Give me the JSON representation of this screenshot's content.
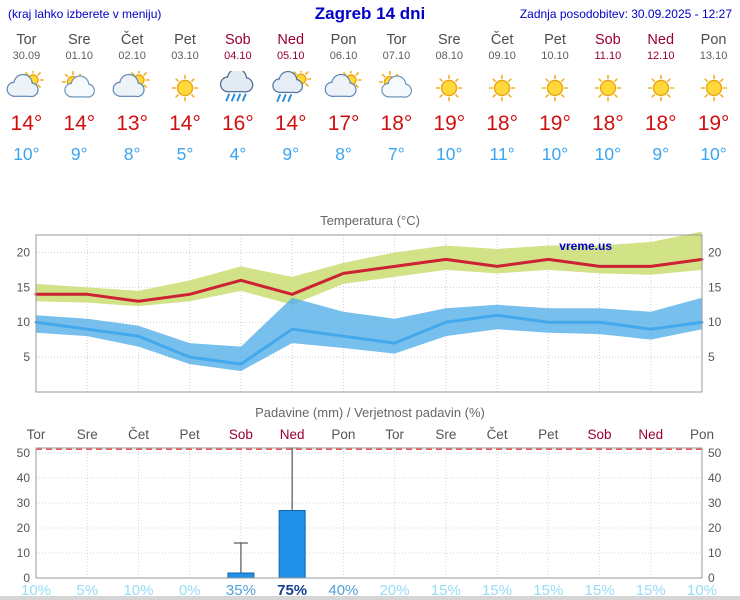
{
  "header": {
    "note": "(kraj lahko izberete v meniju)",
    "title": "Zagreb 14 dni",
    "updated": "Zadnja posodobitev: 30.09.2025 - 12:27"
  },
  "forecast": {
    "days": [
      {
        "name": "Tor",
        "date": "30.09",
        "icon": "mostly-cloudy-icon",
        "high": "14°",
        "low": "10°",
        "weekend": false
      },
      {
        "name": "Sre",
        "date": "01.10",
        "icon": "partly-cloudy-icon",
        "high": "14°",
        "low": "9°",
        "weekend": false
      },
      {
        "name": "Čet",
        "date": "02.10",
        "icon": "mostly-cloudy-icon",
        "high": "13°",
        "low": "8°",
        "weekend": false
      },
      {
        "name": "Pet",
        "date": "03.10",
        "icon": "sunny-icon",
        "high": "14°",
        "low": "5°",
        "weekend": false
      },
      {
        "name": "Sob",
        "date": "04.10",
        "icon": "rain-icon",
        "high": "16°",
        "low": "4°",
        "weekend": true
      },
      {
        "name": "Ned",
        "date": "05.10",
        "icon": "rain-sun-icon",
        "high": "14°",
        "low": "9°",
        "weekend": true
      },
      {
        "name": "Pon",
        "date": "06.10",
        "icon": "mostly-cloudy-icon",
        "high": "17°",
        "low": "8°",
        "weekend": false
      },
      {
        "name": "Tor",
        "date": "07.10",
        "icon": "partly-cloudy-icon",
        "high": "18°",
        "low": "7°",
        "weekend": false
      },
      {
        "name": "Sre",
        "date": "08.10",
        "icon": "sunny-icon",
        "high": "19°",
        "low": "10°",
        "weekend": false
      },
      {
        "name": "Čet",
        "date": "09.10",
        "icon": "sunny-icon",
        "high": "18°",
        "low": "11°",
        "weekend": false
      },
      {
        "name": "Pet",
        "date": "10.10",
        "icon": "sunny-icon",
        "high": "19°",
        "low": "10°",
        "weekend": false
      },
      {
        "name": "Sob",
        "date": "11.10",
        "icon": "sunny-icon",
        "high": "18°",
        "low": "10°",
        "weekend": true
      },
      {
        "name": "Ned",
        "date": "12.10",
        "icon": "sunny-icon",
        "high": "18°",
        "low": "9°",
        "weekend": true
      },
      {
        "name": "Pon",
        "date": "13.10",
        "icon": "sunny-icon",
        "high": "19°",
        "low": "10°",
        "weekend": false
      }
    ]
  },
  "chart_data": [
    {
      "type": "line",
      "title": "Temperatura (°C)",
      "watermark": "vreme.us",
      "categories": [
        "Tor",
        "Sre",
        "Čet",
        "Pet",
        "Sob",
        "Ned",
        "Pon",
        "Tor",
        "Sre",
        "Čet",
        "Pet",
        "Sob",
        "Ned",
        "Pon"
      ],
      "ylim": [
        0,
        22.5
      ],
      "yticks": [
        5,
        10,
        15,
        20
      ],
      "grid": true,
      "legend": "none",
      "series": [
        {
          "name": "max temperature",
          "color": "#cc2233",
          "band_color": "#ccdf7a",
          "values": [
            14,
            14,
            13,
            14,
            16,
            14,
            17,
            18,
            19,
            18,
            19,
            18,
            18,
            19
          ],
          "band_upper": [
            15.5,
            15,
            14.5,
            16,
            18,
            16.5,
            18.5,
            20,
            21,
            20.5,
            21,
            21,
            21.5,
            23
          ],
          "band_lower": [
            13,
            12.8,
            12.3,
            13,
            14.5,
            12.5,
            15.5,
            16.5,
            17.5,
            17,
            17.5,
            17,
            16.8,
            17.5
          ]
        },
        {
          "name": "min temperature",
          "color": "#44a8ec",
          "band_color": "#55b0e8",
          "values": [
            10,
            9,
            8,
            5,
            4,
            9,
            8,
            7,
            10,
            11,
            10,
            10,
            9,
            10
          ],
          "band_upper": [
            11,
            10.5,
            9.5,
            7,
            6.5,
            13.5,
            11.5,
            10.5,
            12,
            12.5,
            12,
            12,
            11.5,
            13.5
          ],
          "band_lower": [
            8.5,
            8,
            6.5,
            4,
            3,
            7,
            6.3,
            5.5,
            8,
            9,
            8.5,
            8.3,
            7.5,
            9
          ]
        }
      ]
    },
    {
      "type": "bar",
      "title": "Padavine (mm) / Verjetnost padavin (%)",
      "categories": [
        "Tor",
        "Sre",
        "Čet",
        "Pet",
        "Sob",
        "Ned",
        "Pon",
        "Tor",
        "Sre",
        "Čet",
        "Pet",
        "Sob",
        "Ned",
        "Pon"
      ],
      "values": [
        0,
        0,
        0,
        0,
        2,
        27,
        0,
        0,
        0,
        0,
        0,
        0,
        0,
        0
      ],
      "whisker_high": [
        null,
        null,
        null,
        null,
        14,
        52,
        null,
        null,
        null,
        null,
        null,
        null,
        null,
        null
      ],
      "probabilities": [
        "10%",
        "5%",
        "10%",
        "0%",
        "35%",
        "75%",
        "40%",
        "20%",
        "15%",
        "15%",
        "15%",
        "15%",
        "15%",
        "10%"
      ],
      "prob_emphasis": [
        "low",
        "low",
        "low",
        "low",
        "mid",
        "high",
        "mid",
        "low",
        "low",
        "low",
        "low",
        "low",
        "low",
        "low"
      ],
      "ylim": [
        0,
        52
      ],
      "yticks": [
        0,
        10,
        20,
        30,
        40,
        50
      ],
      "limit_line": 51.5,
      "bar_color": "#2090e8",
      "grid": true
    }
  ],
  "colors": {
    "accent_blue": "#0000c8",
    "high_temp": "#d01010",
    "low_temp": "#3aa5f0",
    "weekend": "#990033",
    "axis_text": "#555555",
    "prob_low": "#96dcf8",
    "prob_mid": "#4f9fd6",
    "prob_high": "#16418f"
  }
}
